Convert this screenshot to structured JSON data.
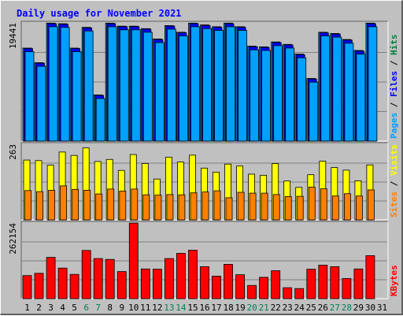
{
  "chart_data": {
    "type": "bar",
    "title": "Daily usage for November 2021",
    "categories": [
      "1",
      "2",
      "3",
      "4",
      "5",
      "6",
      "7",
      "8",
      "9",
      "10",
      "11",
      "12",
      "13",
      "14",
      "15",
      "16",
      "17",
      "18",
      "19",
      "20",
      "21",
      "22",
      "23",
      "24",
      "25",
      "26",
      "27",
      "28",
      "29",
      "30",
      "31"
    ],
    "weekend_days": [
      "6",
      "7",
      "13",
      "14",
      "20",
      "21",
      "27",
      "28"
    ],
    "panels": [
      {
        "id": "hits",
        "tick_label": "19441",
        "ylim": [
          0,
          19441
        ],
        "legend": [
          {
            "name": "Pages",
            "color": "#00a0ff"
          },
          {
            "name": "Files",
            "color": "#0000ff"
          },
          {
            "name": "Hits",
            "color": "#008040"
          }
        ],
        "series": [
          {
            "name": "Hits",
            "values": [
              15300,
              12900,
              19400,
              19300,
              15300,
              18700,
              7600,
              19400,
              18900,
              18900,
              18500,
              16800,
              19000,
              17900,
              19400,
              19100,
              18800,
              19400,
              18800,
              15600,
              15500,
              16300,
              15900,
              14300,
              10300,
              17900,
              17700,
              16700,
              14900,
              19400,
              0
            ]
          },
          {
            "name": "Files",
            "values": [
              15200,
              12800,
              19300,
              19200,
              15200,
              18600,
              7500,
              19300,
              18800,
              18800,
              18400,
              16700,
              18900,
              17800,
              19300,
              19000,
              18700,
              19300,
              18700,
              15500,
              15400,
              16200,
              15800,
              14200,
              10200,
              17800,
              17600,
              16600,
              14800,
              19300,
              0
            ]
          },
          {
            "name": "Pages",
            "values": [
              14700,
              12300,
              18800,
              18700,
              14700,
              18100,
              7000,
              18800,
              18300,
              18300,
              17900,
              16200,
              18400,
              17300,
              18800,
              18500,
              18200,
              18800,
              18200,
              15000,
              14900,
              15700,
              15300,
              13700,
              9700,
              17300,
              17100,
              16100,
              14300,
              18800,
              0
            ]
          }
        ]
      },
      {
        "id": "sites",
        "tick_label": "263",
        "ylim": [
          0,
          263
        ],
        "legend": [
          {
            "name": "Sites",
            "color": "#ff8000"
          },
          {
            "name": "Visits",
            "color": "#ffff00"
          }
        ],
        "series": [
          {
            "name": "Visits",
            "values": [
              208,
              206,
              190,
              236,
              224,
              250,
              203,
              210,
              172,
              227,
              196,
              142,
              218,
              201,
              225,
              180,
              166,
              194,
              187,
              159,
              155,
              196,
              135,
              113,
              157,
              204,
              182,
              173,
              136,
              191,
              0
            ]
          },
          {
            "name": "Sites",
            "values": [
              102,
              98,
              103,
              118,
              106,
              103,
              90,
              107,
              100,
              107,
              87,
              86,
              88,
              87,
              94,
              97,
              101,
              77,
              96,
              93,
              93,
              88,
              81,
              82,
              114,
              108,
              83,
              91,
              83,
              104,
              0
            ]
          }
        ]
      },
      {
        "id": "kbytes",
        "tick_label": "262154",
        "ylim": [
          0,
          262154
        ],
        "legend": [
          {
            "name": "KBytes",
            "color": "#ff0000"
          }
        ],
        "series": [
          {
            "name": "KBytes",
            "values": [
              80000,
              88000,
              143000,
              106000,
              84000,
              167000,
              139000,
              136000,
              94000,
              262000,
              103000,
              102000,
              139000,
              157000,
              168000,
              111000,
              78000,
              119000,
              83000,
              46000,
              74000,
              97000,
              38000,
              35000,
              102000,
              116000,
              111000,
              70000,
              103000,
              149000,
              0
            ]
          }
        ]
      }
    ]
  }
}
